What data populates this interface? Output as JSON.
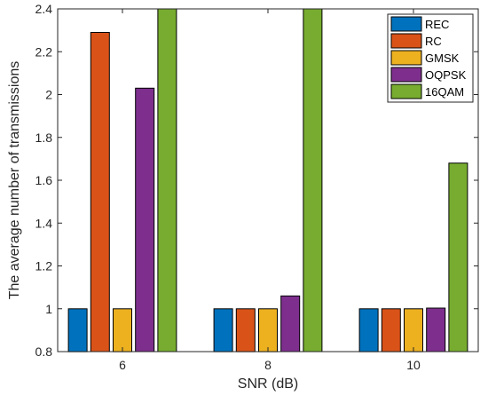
{
  "chart_data": {
    "type": "bar",
    "title": "",
    "xlabel": "SNR (dB)",
    "ylabel": "The average number of transmissions",
    "categories": [
      "6",
      "8",
      "10"
    ],
    "ylim": [
      0.8,
      2.4
    ],
    "yticks": [
      "0.8",
      "1",
      "1.2",
      "1.4",
      "1.6",
      "1.8",
      "2",
      "2.2",
      "2.4"
    ],
    "grid": false,
    "legend_position": "top-right",
    "series": [
      {
        "name": "REC",
        "color": "#0072BD",
        "values": [
          1.0,
          1.0,
          1.0
        ]
      },
      {
        "name": "RC",
        "color": "#D95319",
        "values": [
          2.29,
          1.0,
          1.0
        ]
      },
      {
        "name": "GMSK",
        "color": "#EDB120",
        "values": [
          1.0,
          1.0,
          1.0
        ]
      },
      {
        "name": "OQPSK",
        "color": "#7E2F8E",
        "values": [
          2.03,
          1.06,
          1.003
        ]
      },
      {
        "name": "16QAM",
        "color": "#77AC30",
        "values": [
          2.4,
          2.4,
          1.68
        ]
      }
    ]
  }
}
